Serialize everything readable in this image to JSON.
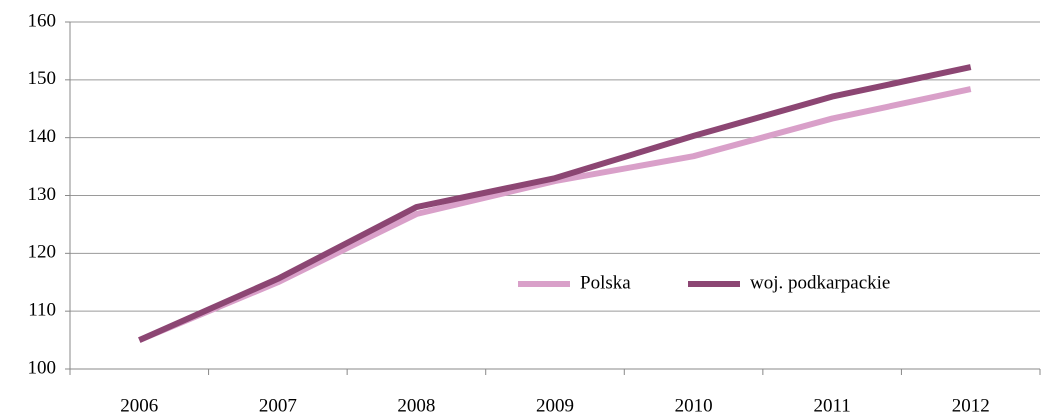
{
  "chart_data": {
    "type": "line",
    "categories": [
      "2006",
      "2007",
      "2008",
      "2009",
      "2010",
      "2011",
      "2012"
    ],
    "series": [
      {
        "name": "Polska",
        "color": "#d9a0c9",
        "values": [
          105,
          115,
          126.8,
          132.5,
          136.8,
          143.3,
          148.4
        ]
      },
      {
        "name": "woj. podkarpackie",
        "color": "#8c4673",
        "values": [
          105,
          115.6,
          128,
          133,
          140.3,
          147.1,
          152.2
        ]
      }
    ],
    "ylim": [
      100,
      160
    ],
    "yticks": [
      100,
      110,
      120,
      130,
      140,
      150,
      160
    ],
    "grid": true,
    "legend": "inside-bottom"
  }
}
